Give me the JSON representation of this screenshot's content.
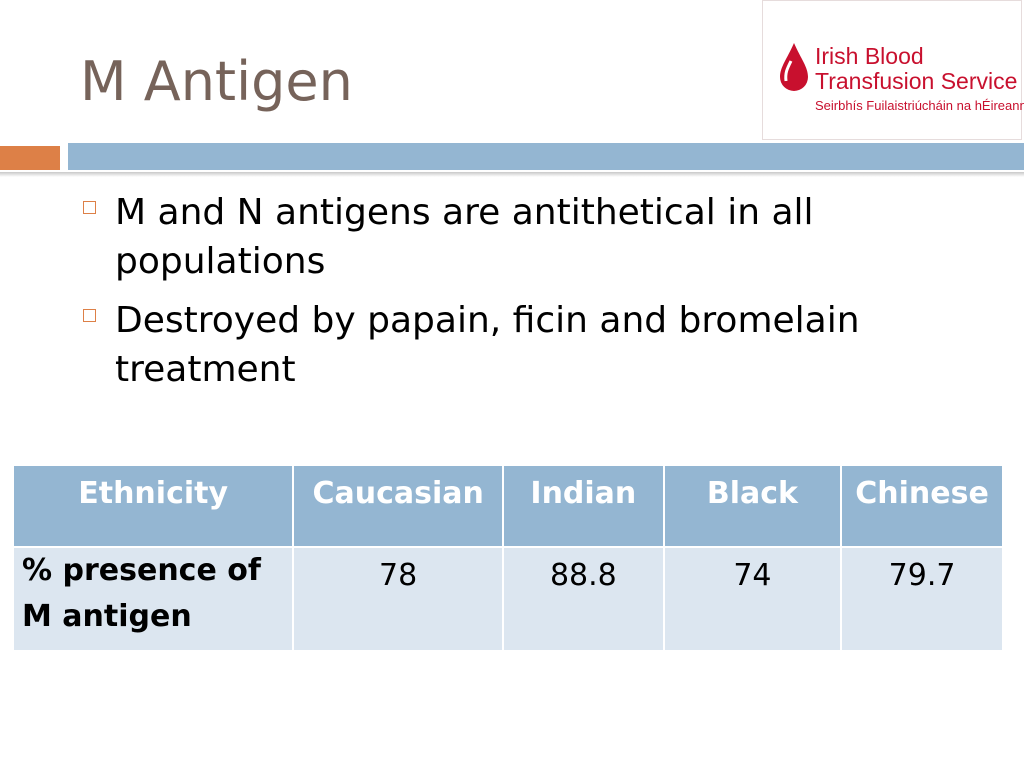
{
  "header": {
    "title": "M Antigen",
    "logo": {
      "line1": "Irish Blood",
      "line2": "Transfusion Service",
      "line3": "Seirbhís Fuilaistriúcháin na hÉireann"
    }
  },
  "bullets": [
    "M and N antigens are antithetical in all populations",
    "Destroyed by papain, ficin and bromelain treatment"
  ],
  "table": {
    "header": [
      "Ethnicity",
      "Caucasian",
      "Indian",
      "Black",
      "Chinese"
    ],
    "rows": [
      [
        "% presence of M antigen",
        78,
        88.8,
        74,
        79.7
      ]
    ]
  }
}
